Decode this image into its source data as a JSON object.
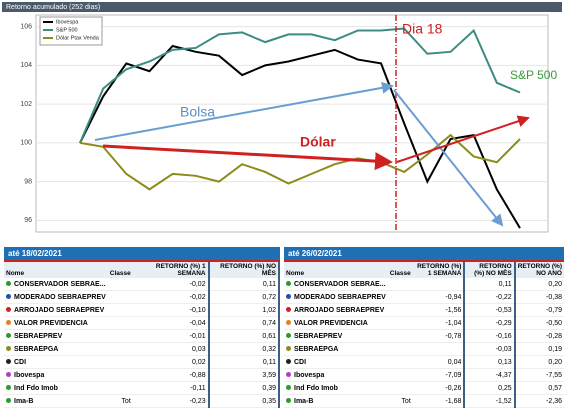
{
  "chart_data": {
    "type": "line",
    "title": "Retorno acumulado (252 dias)",
    "categories": [
      null,
      null,
      null,
      null,
      null,
      null,
      null,
      null,
      null,
      null,
      null,
      null,
      null,
      null,
      null,
      null,
      null,
      null,
      null,
      null
    ],
    "series": [
      {
        "name": "Ibovespa",
        "color": "#000000",
        "values": [
          100,
          102.4,
          104.1,
          103.7,
          105.0,
          104.7,
          104.5,
          103.5,
          104.0,
          104.2,
          104.5,
          104.8,
          104.3,
          104.1,
          101.0,
          98.0,
          100.2,
          100.4,
          97.6,
          95.6
        ]
      },
      {
        "name": "S&P 500",
        "color": "#3c8c84",
        "values": [
          100,
          102.8,
          103.8,
          104.2,
          104.8,
          104.9,
          105.6,
          105.7,
          105.2,
          105.6,
          105.6,
          105.3,
          105.8,
          105.8,
          105.9,
          104.6,
          104.7,
          105.8,
          103.1,
          102.6
        ]
      },
      {
        "name": "Dólar Ptax Venda",
        "color": "#8c8c1c",
        "values": [
          100,
          99.8,
          98.4,
          97.6,
          98.4,
          98.3,
          98.0,
          98.9,
          98.5,
          97.9,
          98.4,
          98.9,
          99.2,
          99.0,
          98.5,
          99.4,
          100.4,
          99.3,
          99.0,
          100.2
        ]
      }
    ],
    "ylim": [
      95.4,
      106.6
    ],
    "yticks": [
      96,
      98,
      100,
      102,
      104,
      106
    ],
    "grid": true,
    "annotations": [
      "Dia 18",
      "S&P 500",
      "Bolsa",
      "Dólar"
    ]
  },
  "tables": [
    {
      "title": "até 18/02/2021",
      "columns": [
        "Nome",
        "Classe",
        "RETORNO (%) 1 SEMANA",
        "RETORNO (%) NO MÊS"
      ],
      "rows": [
        [
          "CONSERVADOR SEBRAE...",
          null,
          "-0,02",
          "0,11"
        ],
        [
          "MODERADO SEBRAEPREV",
          null,
          "-0,02",
          "0,72"
        ],
        [
          "ARROJADO SEBRAEPREV",
          null,
          "-0,10",
          "1,02"
        ],
        [
          "VALOR PREVIDENCIA",
          null,
          "-0,04",
          "0,74"
        ],
        [
          "SEBRAEPREV",
          null,
          "-0,01",
          "0,61"
        ],
        [
          "SEBRAEPGA",
          null,
          "0,03",
          "0,32"
        ],
        [
          "CDI",
          null,
          "0,02",
          "0,11"
        ],
        [
          "Ibovespa",
          null,
          "-0,88",
          "3,59"
        ],
        [
          "Ind Fdo Imob",
          null,
          "-0,11",
          "0,39"
        ],
        [
          "Ima-B",
          "Tot",
          "-0,23",
          "0,35"
        ]
      ]
    },
    {
      "title": "até 26/02/2021",
      "columns": [
        "Nome",
        "Classe",
        "RETORNO (%) 1 SEMANA",
        "RETORNO (%) NO MÊS",
        "RETORNO (%) NO ANO"
      ],
      "rows": [
        [
          "CONSERVADOR SEBRAE...",
          null,
          null,
          "0,11",
          "0,20"
        ],
        [
          "MODERADO SEBRAEPREV",
          null,
          "-0,94",
          "-0,22",
          "-0,38"
        ],
        [
          "ARROJADO SEBRAEPREV",
          null,
          "-1,56",
          "-0,53",
          "-0,79"
        ],
        [
          "VALOR PREVIDENCIA",
          null,
          "-1,04",
          "-0,29",
          "-0,50"
        ],
        [
          "SEBRAEPREV",
          null,
          "-0,78",
          "-0,16",
          "-0,28"
        ],
        [
          "SEBRAEPGA",
          null,
          null,
          "-0,03",
          "0,19"
        ],
        [
          "CDI",
          null,
          "0,04",
          "0,13",
          "0,20"
        ],
        [
          "Ibovespa",
          null,
          "-7,09",
          "-4,37",
          "-7,55"
        ],
        [
          "Ind Fdo Imob",
          null,
          "-0,26",
          "0,25",
          "0,57"
        ],
        [
          "Ima-B",
          "Tot",
          "-1,68",
          "-1,52",
          "-2,36"
        ]
      ]
    }
  ]
}
